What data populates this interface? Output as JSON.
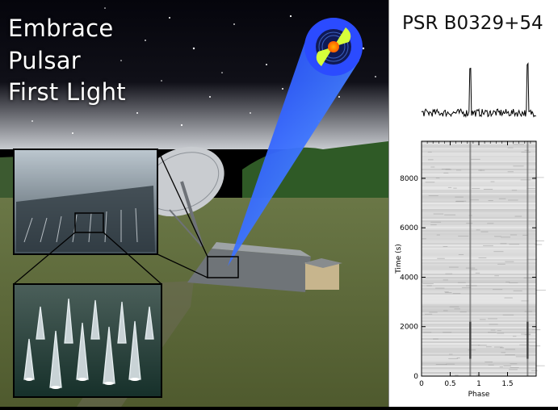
{
  "headline": {
    "line1": "Embrace",
    "line2": "Pulsar",
    "line3": "First Light"
  },
  "right_panel": {
    "pulsar_name": "PSR B0329+54"
  },
  "colors": {
    "beam": "#3b7bff",
    "sky": "#0a0a12",
    "grass": "#5d6b3c",
    "forest": "#2f5a26"
  },
  "chart_data": {
    "type": "heatmap",
    "title": "",
    "xlabel": "Phase",
    "ylabel": "Time (s)",
    "xlim": [
      0,
      2
    ],
    "ylim": [
      0,
      9500
    ],
    "x_ticks": [
      0,
      0.5,
      1,
      1.5
    ],
    "x_tick_labels": [
      "0",
      "0.5",
      "1",
      "1.5"
    ],
    "y_ticks": [
      0,
      2000,
      4000,
      6000,
      8000
    ],
    "y_tick_labels": [
      "0",
      "2000",
      "4000",
      "6000",
      "8000"
    ],
    "pulse_phases": [
      0.85,
      1.85
    ],
    "profile_peak_phases": [
      0.85,
      1.85
    ]
  }
}
